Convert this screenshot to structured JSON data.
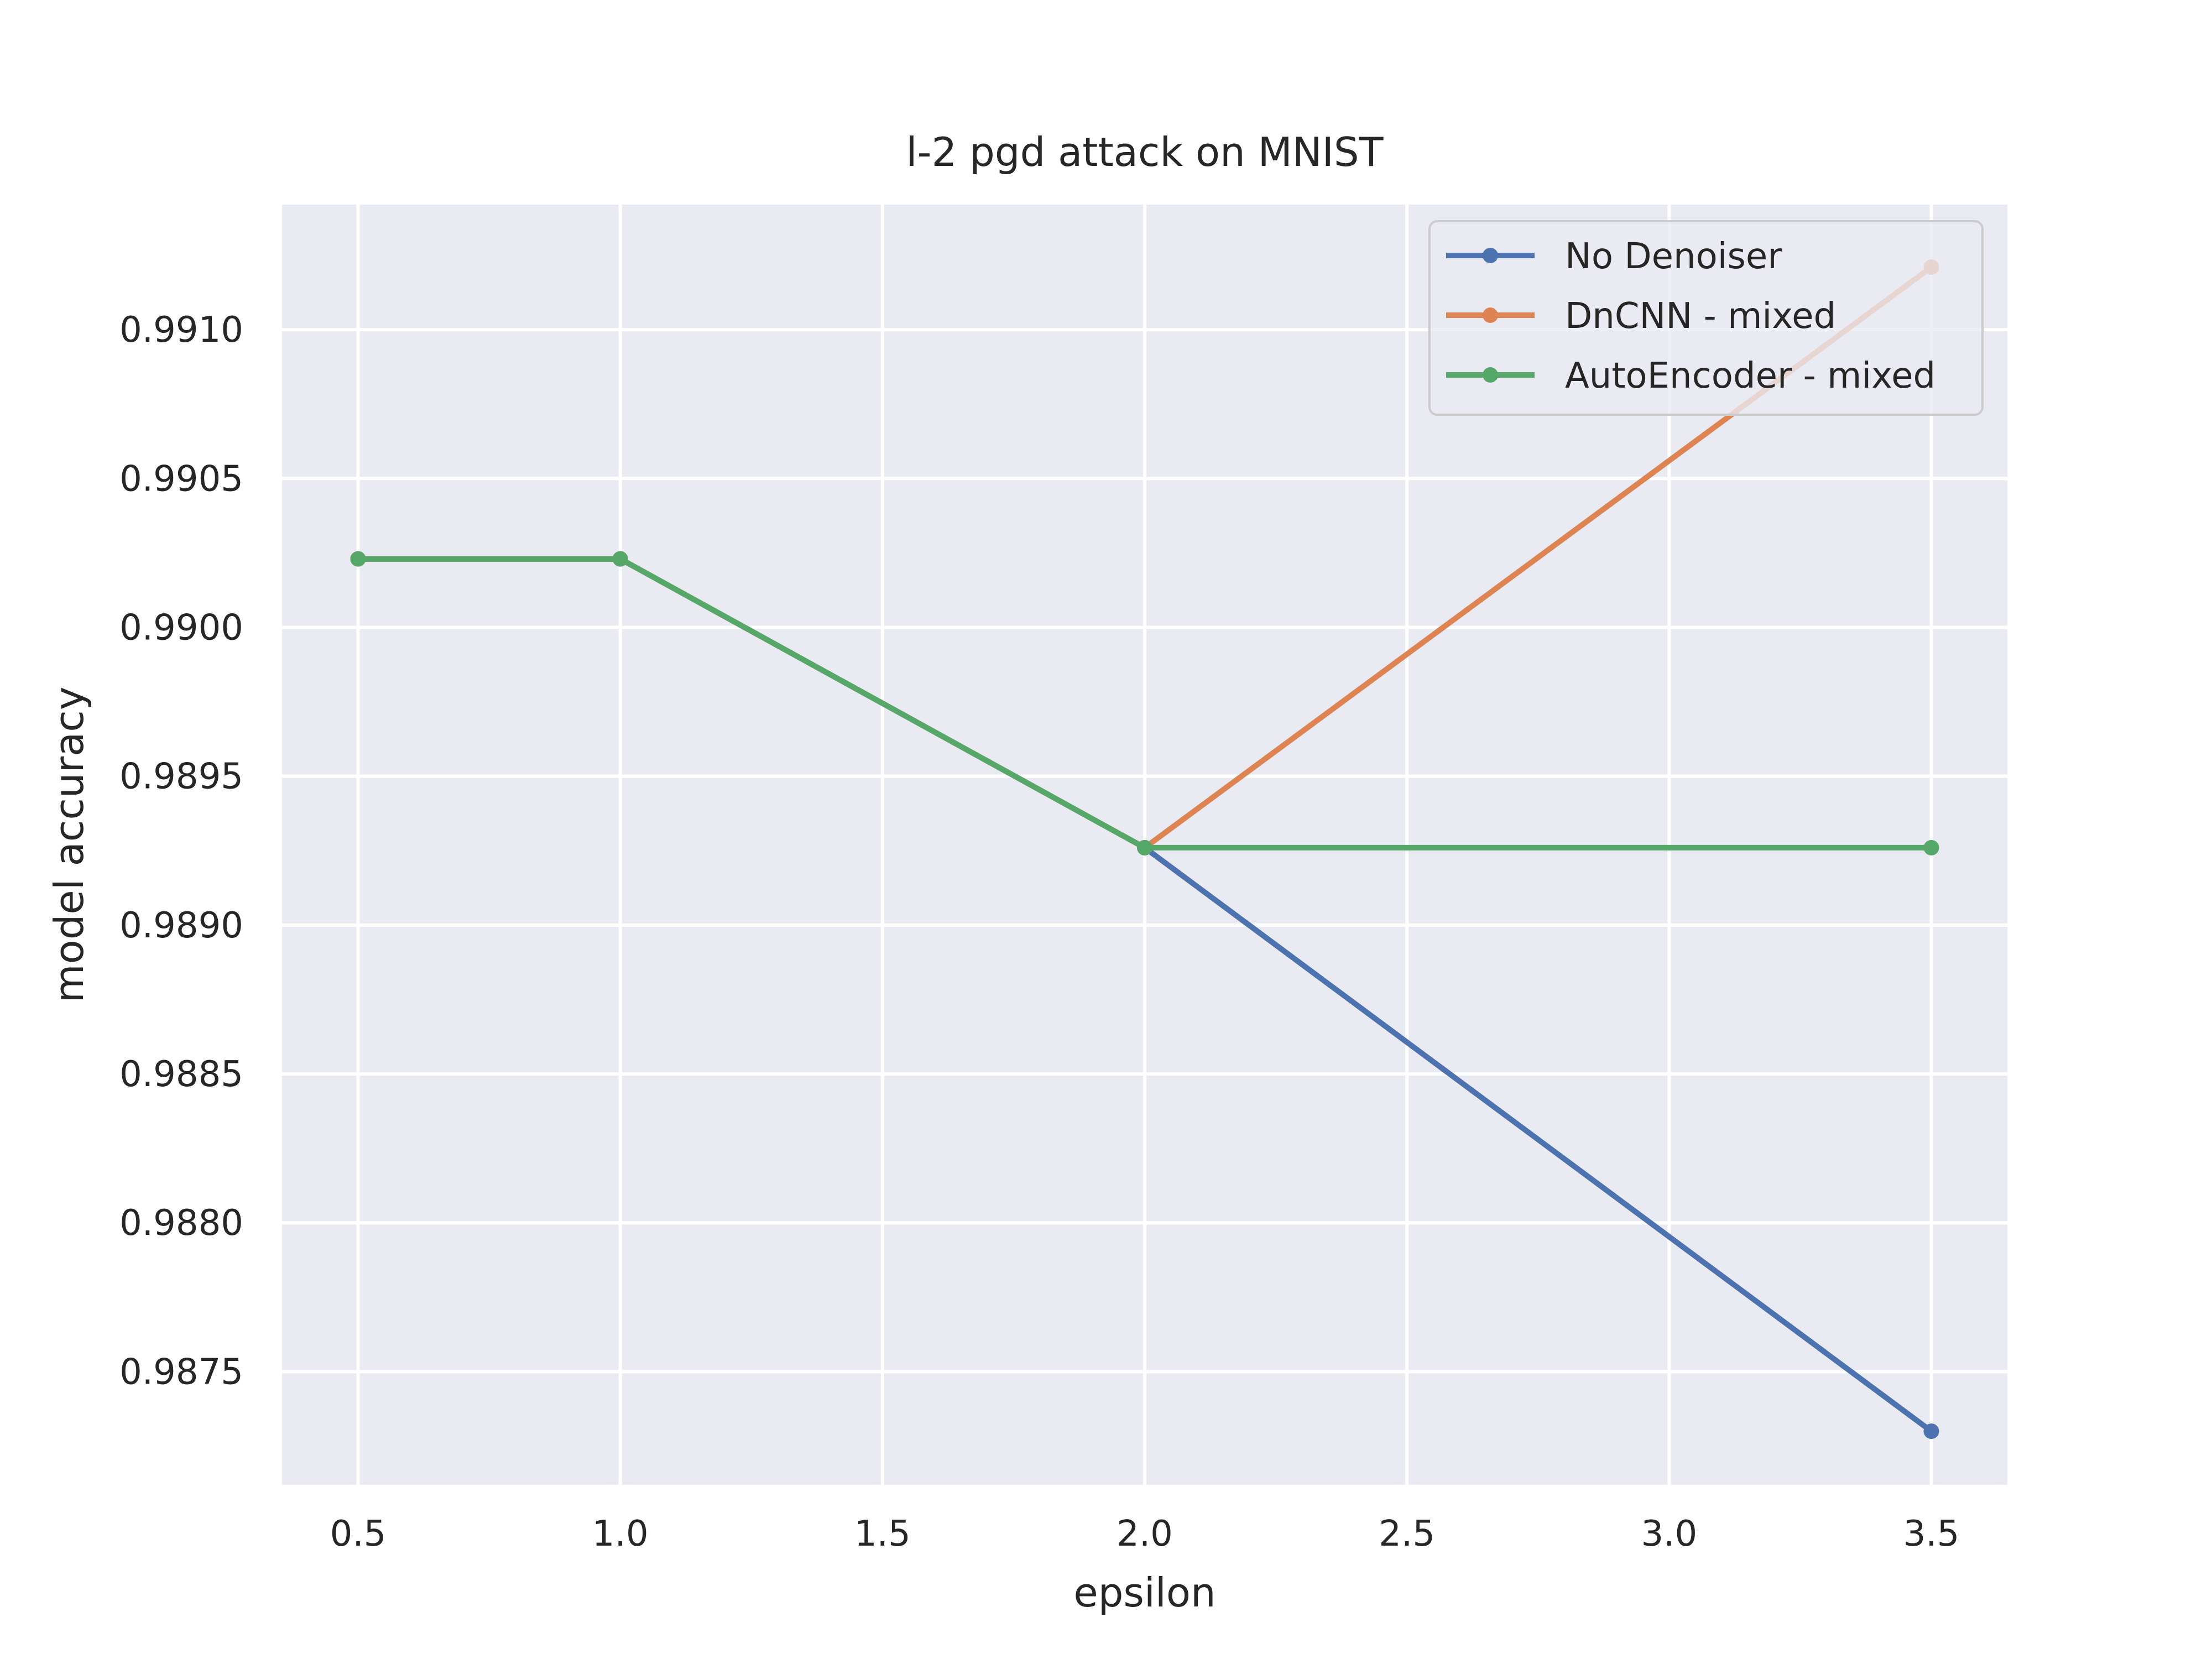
{
  "chart_data": {
    "type": "line",
    "title": "l-2 pgd attack on MNIST",
    "xlabel": "epsilon",
    "ylabel": "model accuracy",
    "xlim": [
      0.355,
      3.645
    ],
    "ylim": [
      0.98712,
      0.99142
    ],
    "xticks": [
      0.5,
      1.0,
      1.5,
      2.0,
      2.5,
      3.0,
      3.5
    ],
    "xtick_labels": [
      "0.5",
      "1.0",
      "1.5",
      "2.0",
      "2.5",
      "3.0",
      "3.5"
    ],
    "yticks": [
      0.9875,
      0.988,
      0.9885,
      0.989,
      0.9895,
      0.99,
      0.9905,
      0.991
    ],
    "ytick_labels": [
      "0.9875",
      "0.9880",
      "0.9885",
      "0.9890",
      "0.9895",
      "0.9900",
      "0.9905",
      "0.9910"
    ],
    "grid": true,
    "legend_position": "top-right",
    "series": [
      {
        "name": "No Denoiser",
        "color": "#4c72b0",
        "x": [
          0.5,
          1.0,
          2.0,
          3.5
        ],
        "y": [
          0.99023,
          0.99023,
          0.98926,
          0.9873
        ]
      },
      {
        "name": "DnCNN - mixed",
        "color": "#dd8452",
        "x": [
          0.5,
          1.0,
          2.0,
          3.5
        ],
        "y": [
          0.99023,
          0.99023,
          0.98926,
          0.99121
        ]
      },
      {
        "name": "AutoEncoder - mixed",
        "color": "#55a868",
        "x": [
          0.5,
          1.0,
          2.0,
          3.5
        ],
        "y": [
          0.99023,
          0.99023,
          0.98926,
          0.98926
        ]
      }
    ]
  }
}
